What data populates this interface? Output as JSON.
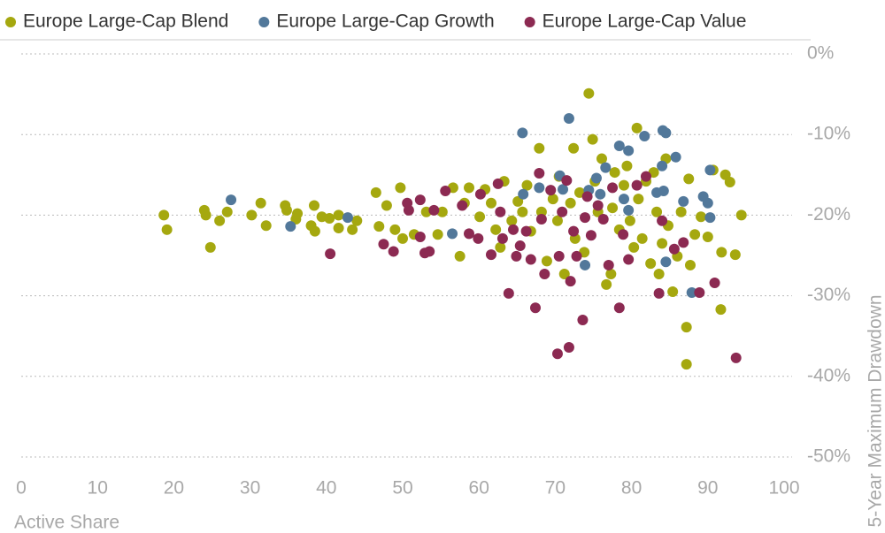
{
  "chart_data": {
    "type": "scatter",
    "x_label": "Active Share",
    "y_label": "5-Year Maximum Drawdown",
    "legend": "top",
    "grid": true,
    "xlim": [
      0,
      100
    ],
    "xticks": [
      0,
      10,
      20,
      30,
      40,
      50,
      60,
      70,
      80,
      90,
      100
    ],
    "ylim": [
      -50,
      0
    ],
    "yticks": [
      {
        "value": 0,
        "label": "0%"
      },
      {
        "value": -10,
        "label": "-10%"
      },
      {
        "value": -20,
        "label": "-20%"
      },
      {
        "value": -30,
        "label": "-30%"
      },
      {
        "value": -40,
        "label": "-40%"
      },
      {
        "value": -50,
        "label": "-50%"
      }
    ],
    "series": [
      {
        "name": "Europe Large-Cap Blend",
        "color": "#a5a80f",
        "x": [
          18.7,
          19.1,
          24,
          24.2,
          24.8,
          26,
          27,
          30.2,
          31.4,
          32.1,
          34.6,
          34.8,
          36,
          36.2,
          38,
          38.4,
          38.5,
          39.4,
          40.4,
          41.6,
          41.6,
          43.4,
          44,
          46.5,
          46.9,
          47.9,
          49,
          49.7,
          50,
          51.5,
          53.1,
          54.6,
          55.2,
          56.6,
          57.5,
          58.1,
          58.7,
          60.1,
          60.8,
          61.6,
          62.2,
          62.8,
          63.3,
          64.3,
          65.1,
          65.7,
          66.3,
          66.8,
          67.9,
          68.2,
          68.9,
          69.7,
          70.3,
          70.5,
          71.2,
          72,
          72.4,
          72.6,
          73.2,
          73.8,
          74.4,
          74.9,
          75.2,
          75.6,
          76.1,
          76.7,
          77.3,
          77.5,
          77.8,
          78.4,
          79,
          79.4,
          79.8,
          80.3,
          80.7,
          80.9,
          81.4,
          81.9,
          82.5,
          82.9,
          83.3,
          83.6,
          84,
          84.5,
          84.8,
          85.4,
          86,
          86.5,
          87.2,
          87.2,
          87.5,
          87.7,
          88.3,
          89.1,
          90,
          90.7,
          91.8,
          91.7,
          92.3,
          92.9,
          93.6,
          94.4
        ],
        "values": [
          -20,
          -21.8,
          -19.4,
          -20,
          -24,
          -20.7,
          -19.6,
          -20,
          -18.5,
          -21.3,
          -18.8,
          -19.4,
          -20.5,
          -19.8,
          -21.3,
          -18.8,
          -22,
          -20.2,
          -20.4,
          -20,
          -21.6,
          -21.8,
          -20.7,
          -17.2,
          -21.4,
          -18.8,
          -21.8,
          -16.6,
          -22.9,
          -22.4,
          -19.6,
          -22.4,
          -19.6,
          -16.6,
          -25.1,
          -18.5,
          -16.6,
          -20.2,
          -16.8,
          -18.5,
          -21.8,
          -24,
          -15.8,
          -20.7,
          -18.3,
          -19.6,
          -16.3,
          -22,
          -11.7,
          -19.6,
          -25.7,
          -18,
          -20.7,
          -15.2,
          -27.3,
          -18.5,
          -11.7,
          -22.9,
          -17.2,
          -24.6,
          -4.9,
          -10.6,
          -15.8,
          -19.6,
          -13,
          -28.6,
          -27.3,
          -19.1,
          -14.7,
          -21.8,
          -16.3,
          -13.9,
          -20.7,
          -24,
          -9.2,
          -18,
          -22.9,
          -15.8,
          -26,
          -14.7,
          -19.6,
          -27.3,
          -23.5,
          -13,
          -21.3,
          -29.5,
          -25.1,
          -19.6,
          -33.9,
          -38.5,
          -15.5,
          -26.2,
          -22.4,
          -20.2,
          -22.7,
          -14.4,
          -24.6,
          -31.7,
          -15,
          -15.9,
          -24.9,
          -20
        ]
      },
      {
        "name": "Europe Large-Cap Growth",
        "color": "#52789a",
        "x": [
          27.5,
          35.3,
          42.8,
          56.5,
          65.7,
          65.8,
          67.9,
          70.6,
          71,
          71.8,
          73.9,
          74.4,
          75.4,
          75.9,
          76.6,
          78.4,
          79,
          79.6,
          79.6,
          81.7,
          83.3,
          84.1,
          84.2,
          84.5,
          84,
          84.5,
          85.8,
          86.8,
          87.9,
          89.4,
          90,
          90.3,
          90.3
        ],
        "values": [
          -18.1,
          -21.4,
          -20.3,
          -22.3,
          -9.8,
          -17.4,
          -16.6,
          -15.1,
          -16.8,
          -8,
          -26.2,
          -16.9,
          -15.4,
          -17.4,
          -14.1,
          -11.4,
          -18,
          -12,
          -19.4,
          -10.2,
          -17.2,
          -9.5,
          -17,
          -9.8,
          -13.9,
          -25.8,
          -12.8,
          -18.3,
          -29.6,
          -17.7,
          -18.5,
          -14.4,
          -20.3
        ]
      },
      {
        "name": "Europe Large-Cap Value",
        "color": "#8c2a52",
        "x": [
          40.5,
          47.5,
          48.8,
          50.6,
          50.8,
          52.3,
          52.3,
          52.9,
          53.5,
          54.1,
          55.6,
          57.8,
          58.7,
          59.9,
          60.2,
          61.6,
          62.5,
          62.8,
          63.1,
          63.9,
          64.5,
          64.9,
          65.4,
          66.2,
          66.8,
          67.4,
          67.9,
          68.2,
          68.6,
          69.4,
          70.3,
          70.5,
          70.9,
          71.5,
          71.8,
          72,
          72.4,
          72.8,
          73.6,
          73.9,
          74.2,
          74.7,
          75.6,
          76.3,
          77,
          77.5,
          78.4,
          78.9,
          79.6,
          80.7,
          81.9,
          83.6,
          84,
          85.6,
          86.8,
          88.9,
          90.9,
          93.7
        ],
        "values": [
          -24.8,
          -23.6,
          -24.5,
          -18.5,
          -19.4,
          -18.1,
          -22.7,
          -24.7,
          -24.5,
          -19.4,
          -17,
          -18.8,
          -22.3,
          -22.9,
          -17.4,
          -24.9,
          -16.1,
          -19.6,
          -22.9,
          -29.7,
          -21.8,
          -25.1,
          -23.8,
          -22,
          -25.5,
          -31.5,
          -14.8,
          -20.5,
          -27.3,
          -16.9,
          -37.2,
          -25.1,
          -19.6,
          -15.7,
          -36.4,
          -28.2,
          -22,
          -25.1,
          -33,
          -20.3,
          -17.7,
          -22.5,
          -18.8,
          -20.5,
          -26.2,
          -16.6,
          -31.5,
          -22.4,
          -25.5,
          -16.3,
          -15.2,
          -29.7,
          -20.7,
          -24.2,
          -23.4,
          -29.6,
          -28.4,
          -37.7
        ]
      }
    ]
  }
}
